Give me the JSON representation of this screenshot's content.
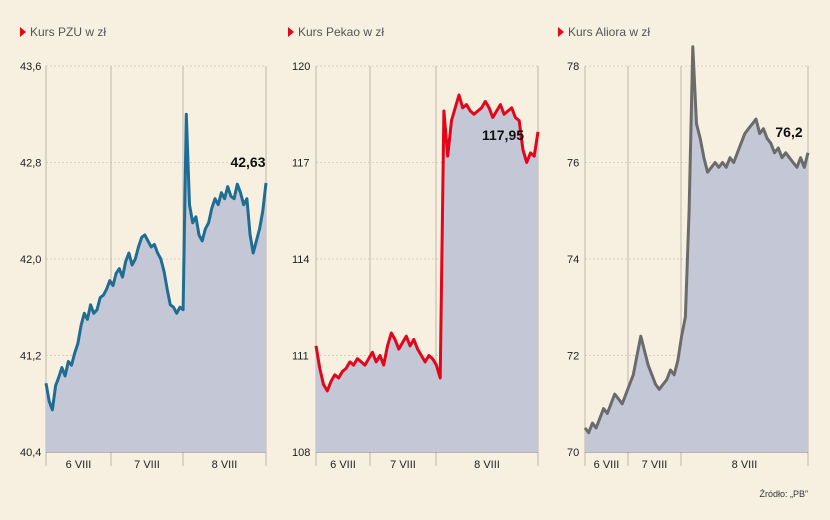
{
  "source": "Źródło: „PB”",
  "chart_data": [
    {
      "type": "line",
      "title": "Kurs PZU w zł",
      "ylim": [
        40.4,
        43.6
      ],
      "yticks": [
        "43,6",
        "42,8",
        "42,0",
        "41,2",
        "40,4"
      ],
      "ytick_values": [
        43.6,
        42.8,
        42.0,
        41.2,
        40.4
      ],
      "days": [
        "6 VIII",
        "7 VIII",
        "8 VIII"
      ],
      "last_label": "42,63",
      "color": "#1f6d92",
      "series": [
        {
          "values": [
            40.97,
            40.82,
            40.75,
            40.95,
            41.02,
            41.1,
            41.03,
            41.15,
            41.12,
            41.22,
            41.3,
            41.45,
            41.55,
            41.5,
            41.62,
            41.55,
            41.58,
            41.68,
            41.7,
            41.75,
            41.82,
            41.78,
            41.88,
            41.92,
            41.85,
            41.98,
            42.05,
            41.95,
            42.0,
            42.1,
            42.18,
            42.2,
            42.15,
            42.1,
            42.12,
            42.05,
            42.0,
            41.9,
            41.75,
            41.62,
            41.6,
            41.55,
            41.6,
            41.58,
            43.2,
            42.45,
            42.3,
            42.35,
            42.2,
            42.15,
            42.25,
            42.3,
            42.42,
            42.5,
            42.45,
            42.55,
            42.5,
            42.6,
            42.52,
            42.5,
            42.62,
            42.55,
            42.45,
            42.5,
            42.2,
            42.05,
            42.15,
            42.25,
            42.4,
            42.63
          ]
        }
      ]
    },
    {
      "type": "line",
      "title": "Kurs Pekao w zł",
      "ylim": [
        108,
        120
      ],
      "yticks": [
        "120",
        "117",
        "114",
        "111",
        "108"
      ],
      "ytick_values": [
        120,
        117,
        114,
        111,
        108
      ],
      "days": [
        "6 VIII",
        "7 VIII",
        "8 VIII"
      ],
      "last_label": "117,95",
      "color": "#e3061b",
      "series": [
        {
          "values": [
            111.3,
            110.6,
            110.1,
            109.9,
            110.2,
            110.4,
            110.3,
            110.5,
            110.6,
            110.8,
            110.7,
            110.9,
            110.8,
            110.7,
            110.9,
            111.1,
            110.8,
            111.0,
            110.7,
            111.3,
            111.7,
            111.5,
            111.2,
            111.4,
            111.6,
            111.3,
            111.5,
            111.2,
            111.0,
            110.8,
            111.0,
            110.9,
            110.7,
            110.3,
            118.6,
            117.2,
            118.3,
            118.7,
            119.1,
            118.7,
            118.8,
            118.6,
            118.5,
            118.6,
            118.7,
            118.9,
            118.7,
            118.4,
            118.6,
            118.8,
            118.5,
            118.6,
            118.7,
            118.4,
            118.3,
            117.4,
            117.0,
            117.3,
            117.2,
            117.95
          ]
        }
      ]
    },
    {
      "type": "line",
      "title": "Kurs Aliora w zł",
      "ylim": [
        70,
        78
      ],
      "yticks": [
        "78",
        "76",
        "74",
        "72",
        "70"
      ],
      "ytick_values": [
        78,
        76,
        74,
        72,
        70
      ],
      "days": [
        "6 VIII",
        "7 VIII",
        "8 VIII"
      ],
      "last_label": "76,2",
      "color": "#6b6b6b",
      "series": [
        {
          "values": [
            70.5,
            70.4,
            70.6,
            70.5,
            70.7,
            70.9,
            70.8,
            71.0,
            71.2,
            71.1,
            71.0,
            71.2,
            71.4,
            71.6,
            72.0,
            72.4,
            72.1,
            71.8,
            71.6,
            71.4,
            71.3,
            71.4,
            71.5,
            71.7,
            71.6,
            71.9,
            72.4,
            72.8,
            75.0,
            78.4,
            76.8,
            76.5,
            76.1,
            75.8,
            75.9,
            76.0,
            75.9,
            76.0,
            75.9,
            76.1,
            76.0,
            76.2,
            76.4,
            76.6,
            76.7,
            76.8,
            76.9,
            76.6,
            76.7,
            76.5,
            76.4,
            76.2,
            76.3,
            76.1,
            76.2,
            76.1,
            76.0,
            75.9,
            76.1,
            75.9,
            76.2
          ]
        }
      ]
    }
  ]
}
